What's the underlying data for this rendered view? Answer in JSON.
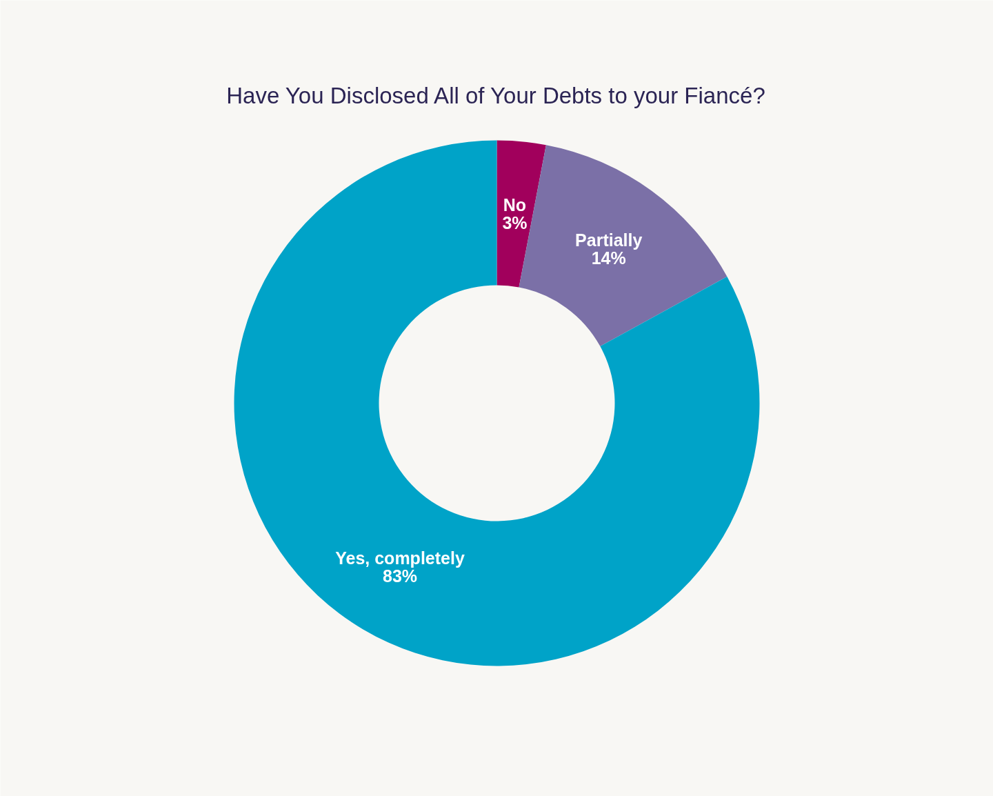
{
  "chart_data": {
    "type": "donut",
    "title": "Have You Disclosed All of Your Debts to your Fiancé?",
    "categories": [
      "No",
      "Partially",
      "Yes, completely"
    ],
    "values": [
      3,
      14,
      83
    ],
    "colors": [
      "#a1005c",
      "#7b70a7",
      "#00a3c8"
    ],
    "value_labels": [
      "3%",
      "14%",
      "83%"
    ]
  }
}
